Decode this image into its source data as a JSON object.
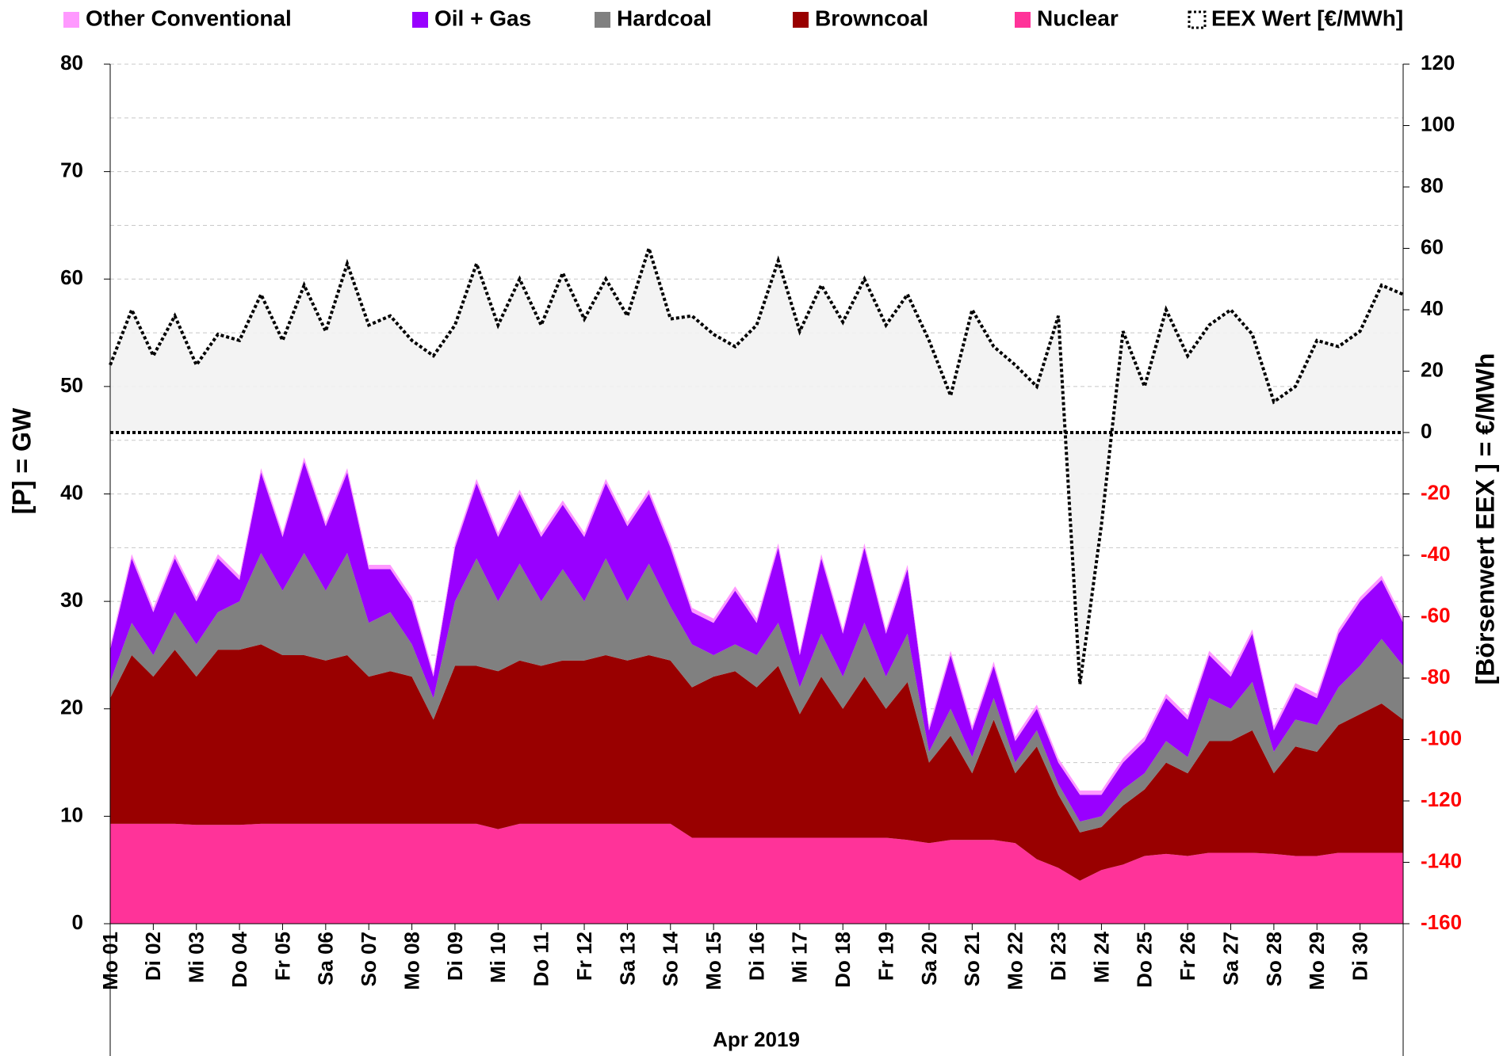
{
  "chart_data": {
    "type": "area",
    "x_label": "Apr 2019",
    "y_label": "[P]  =  GW",
    "y2_label": "[Börsenwert EEX ]   =   €/MWh",
    "xlim": [
      0,
      30
    ],
    "xticks": [
      {
        "value": 0,
        "label": "Mo 01"
      },
      {
        "value": 1,
        "label": "Di 02"
      },
      {
        "value": 2,
        "label": "Mi 03"
      },
      {
        "value": 3,
        "label": "Do 04"
      },
      {
        "value": 4,
        "label": "Fr 05"
      },
      {
        "value": 5,
        "label": "Sa 06"
      },
      {
        "value": 6,
        "label": "So 07"
      },
      {
        "value": 7,
        "label": "Mo 08"
      },
      {
        "value": 8,
        "label": "Di 09"
      },
      {
        "value": 9,
        "label": "Mi 10"
      },
      {
        "value": 10,
        "label": "Do 11"
      },
      {
        "value": 11,
        "label": "Fr 12"
      },
      {
        "value": 12,
        "label": "Sa 13"
      },
      {
        "value": 13,
        "label": "So 14"
      },
      {
        "value": 14,
        "label": "Mo 15"
      },
      {
        "value": 15,
        "label": "Di 16"
      },
      {
        "value": 16,
        "label": "Mi 17"
      },
      {
        "value": 17,
        "label": "Do 18"
      },
      {
        "value": 18,
        "label": "Fr 19"
      },
      {
        "value": 19,
        "label": "Sa 20"
      },
      {
        "value": 20,
        "label": "So 21"
      },
      {
        "value": 21,
        "label": "Mo 22"
      },
      {
        "value": 22,
        "label": "Di 23"
      },
      {
        "value": 23,
        "label": "Mi 24"
      },
      {
        "value": 24,
        "label": "Do 25"
      },
      {
        "value": 25,
        "label": "Fr 26"
      },
      {
        "value": 26,
        "label": "Sa 27"
      },
      {
        "value": 27,
        "label": "So 28"
      },
      {
        "value": 28,
        "label": "Mo 29"
      },
      {
        "value": 29,
        "label": "Di 30"
      }
    ],
    "ylim": [
      0,
      80
    ],
    "yticks": [
      0,
      10,
      20,
      30,
      40,
      50,
      60,
      70,
      80
    ],
    "ygrid": [
      5,
      10,
      15,
      20,
      25,
      30,
      35,
      40,
      45,
      50,
      55,
      60,
      65,
      70,
      75,
      80
    ],
    "y2lim": [
      -160,
      120
    ],
    "y2ticks": [
      -160,
      -140,
      -120,
      -100,
      -80,
      -60,
      -40,
      -20,
      0,
      20,
      40,
      60,
      80,
      100,
      120
    ],
    "y2_negative_color": "#ff0000",
    "x": [
      0,
      0.5,
      1,
      1.5,
      2,
      2.5,
      3,
      3.5,
      4,
      4.5,
      5,
      5.5,
      6,
      6.5,
      7,
      7.5,
      8,
      8.5,
      9,
      9.5,
      10,
      10.5,
      11,
      11.5,
      12,
      12.5,
      13,
      13.5,
      14,
      14.5,
      15,
      15.5,
      16,
      16.5,
      17,
      17.5,
      18,
      18.5,
      19,
      19.5,
      20,
      20.5,
      21,
      21.5,
      22,
      22.5,
      23,
      23.5,
      24,
      24.5,
      25,
      25.5,
      26,
      26.5,
      27,
      27.5,
      28,
      28.5,
      29,
      29.5,
      30
    ],
    "series": [
      {
        "name": "Other Conventional",
        "color": "#ff99ff",
        "values": [
          0.4,
          0.4,
          0.4,
          0.4,
          0.4,
          0.4,
          0.4,
          0.4,
          0.4,
          0.4,
          0.4,
          0.4,
          0.4,
          0.4,
          0.4,
          0.4,
          0.4,
          0.4,
          0.4,
          0.4,
          0.4,
          0.4,
          0.4,
          0.4,
          0.4,
          0.4,
          0.4,
          0.4,
          0.4,
          0.4,
          0.4,
          0.4,
          0.4,
          0.4,
          0.4,
          0.4,
          0.4,
          0.4,
          0.4,
          0.4,
          0.4,
          0.4,
          0.4,
          0.4,
          0.4,
          0.4,
          0.4,
          0.4,
          0.4,
          0.4,
          0.4,
          0.4,
          0.4,
          0.4,
          0.4,
          0.4,
          0.4,
          0.4,
          0.4,
          0.4,
          0.4
        ]
      },
      {
        "name": "Oil + Gas",
        "color": "#9900ff",
        "values": [
          3,
          6,
          4,
          5,
          4,
          5,
          2,
          7.5,
          5,
          8.5,
          6,
          7.5,
          5,
          4,
          4,
          2,
          5,
          7,
          6,
          6.5,
          6,
          6,
          6,
          7,
          7,
          6.5,
          5.5,
          3,
          3,
          5,
          3,
          7,
          3,
          7,
          4,
          7,
          4,
          6,
          2,
          5,
          2.5,
          3,
          2,
          2,
          2,
          2.5,
          2,
          2.5,
          3,
          4,
          3.5,
          4,
          3,
          4.5,
          2,
          3,
          2.5,
          5,
          6,
          5.5,
          4
        ]
      },
      {
        "name": "Hardcoal",
        "color": "#808080",
        "values": [
          1.5,
          3,
          2,
          3.5,
          3,
          3.5,
          4.5,
          8.5,
          6,
          9.5,
          6.5,
          9.5,
          5,
          5.5,
          3,
          2,
          6,
          10,
          6.5,
          9,
          6,
          8.5,
          5.5,
          9,
          5.5,
          8.5,
          5,
          4,
          2,
          2.5,
          3,
          4,
          2.5,
          4,
          3,
          5,
          3,
          4.5,
          1,
          2.5,
          1.5,
          2,
          1,
          1.5,
          1,
          1,
          1,
          1.5,
          1.5,
          2,
          1.5,
          4,
          3,
          4.5,
          2,
          2.5,
          2.5,
          3.5,
          4.5,
          6,
          5
        ]
      },
      {
        "name": "Browncoal",
        "color": "#990000",
        "values": [
          11.7,
          15.7,
          13.7,
          16.2,
          13.8,
          16.3,
          16.3,
          16.7,
          15.7,
          15.7,
          15.2,
          15.7,
          13.7,
          14.2,
          13.7,
          9.7,
          14.7,
          14.7,
          14.7,
          15.2,
          14.7,
          15.2,
          15.2,
          15.7,
          15.2,
          15.7,
          15.2,
          14,
          15,
          15.5,
          14,
          16,
          11.5,
          15,
          12,
          15,
          12,
          14.7,
          7.5,
          9.7,
          6.2,
          11.2,
          6.5,
          10.5,
          6.8,
          4.5,
          4,
          5.5,
          6.2,
          8.5,
          7.7,
          10.4,
          10.4,
          11.4,
          7.5,
          10.2,
          9.7,
          11.9,
          12.9,
          13.9,
          12.4
        ]
      },
      {
        "name": "Nuclear",
        "color": "#ff3399",
        "values": [
          9.3,
          9.3,
          9.3,
          9.3,
          9.2,
          9.2,
          9.2,
          9.3,
          9.3,
          9.3,
          9.3,
          9.3,
          9.3,
          9.3,
          9.3,
          9.3,
          9.3,
          9.3,
          8.8,
          9.3,
          9.3,
          9.3,
          9.3,
          9.3,
          9.3,
          9.3,
          9.3,
          8.0,
          8.0,
          8.0,
          8.0,
          8.0,
          8.0,
          8.0,
          8.0,
          8.0,
          8.0,
          7.8,
          7.5,
          7.8,
          7.8,
          7.8,
          7.5,
          6.0,
          5.2,
          4.0,
          5.0,
          5.5,
          6.3,
          6.5,
          6.3,
          6.6,
          6.6,
          6.6,
          6.5,
          6.3,
          6.3,
          6.6,
          6.6,
          6.6,
          6.6
        ]
      },
      {
        "name": "EEX Wert [€/MWh]",
        "color": "#000000",
        "fill": "#f2f2f2",
        "axis": "y2",
        "style": "dotted",
        "values": [
          22,
          40,
          25,
          38,
          22,
          32,
          30,
          45,
          30,
          48,
          33,
          55,
          35,
          38,
          30,
          25,
          35,
          55,
          35,
          50,
          35,
          52,
          37,
          50,
          38,
          60,
          37,
          38,
          32,
          28,
          35,
          56,
          33,
          48,
          36,
          50,
          35,
          45,
          30,
          12,
          40,
          28,
          22,
          15,
          38,
          -82,
          -30,
          33,
          15,
          40,
          25,
          35,
          40,
          32,
          10,
          15,
          30,
          28,
          33,
          48,
          45
        ]
      }
    ]
  }
}
